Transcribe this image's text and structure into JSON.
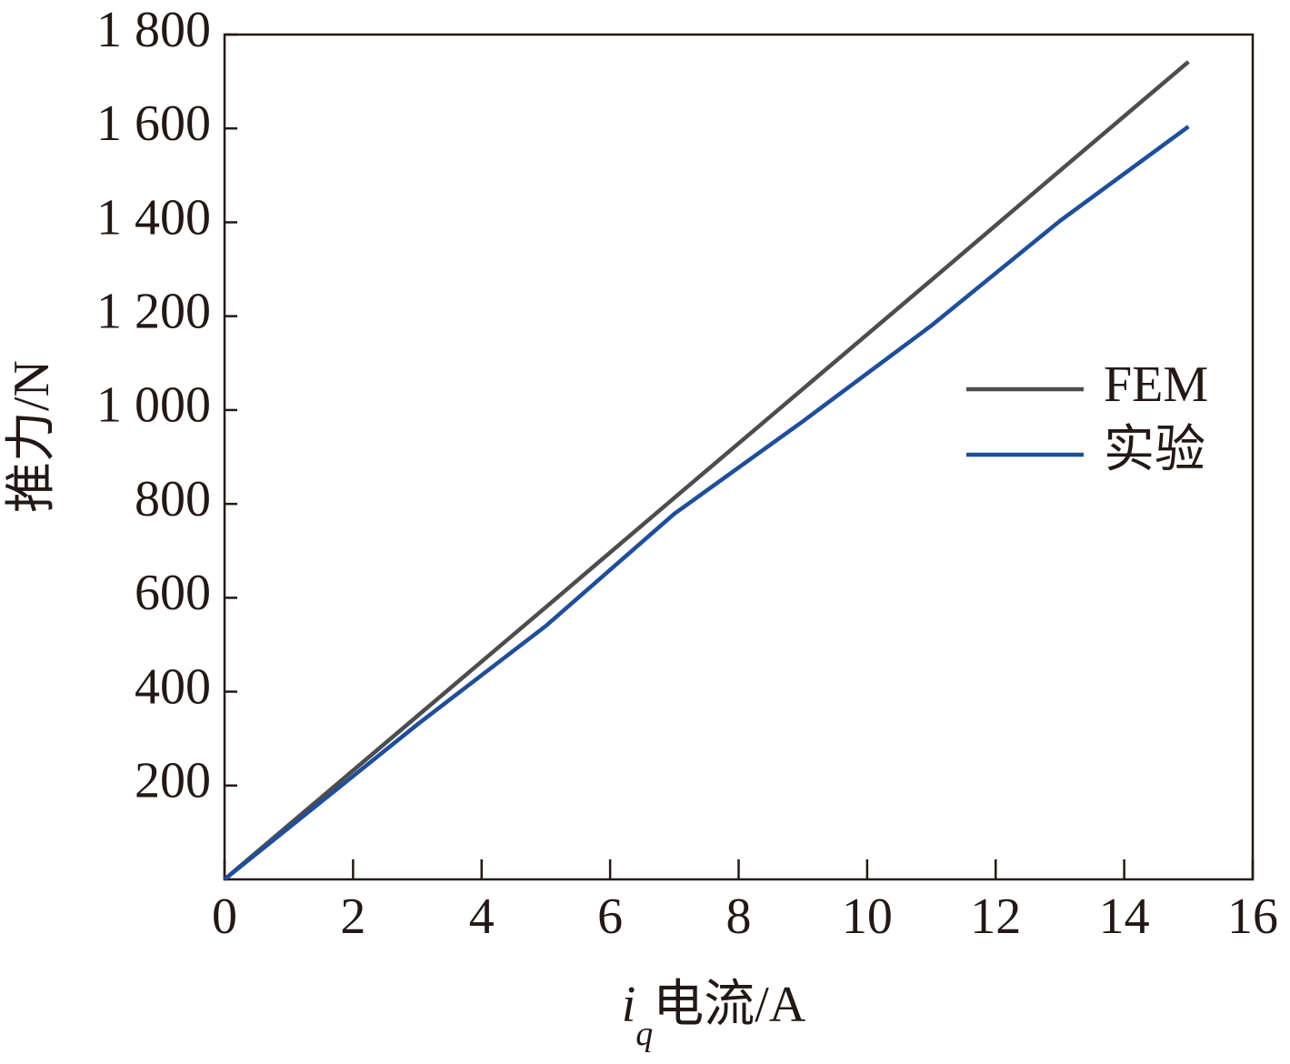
{
  "chart_data": {
    "type": "line",
    "x_label": {
      "symbol": "i",
      "subscript": "q",
      "text": "电流/A"
    },
    "y_label": "推力/N",
    "x": [
      0,
      1,
      3,
      5,
      7,
      9,
      11,
      13,
      15
    ],
    "series": [
      {
        "name": "FEM",
        "color": "#4d4d4d",
        "values": [
          0,
          116,
          348,
          580,
          813,
          1045,
          1277,
          1510,
          1742
        ]
      },
      {
        "name": "实验",
        "color": "#1f4e9a",
        "values": [
          0,
          110,
          330,
          540,
          779,
          976,
          1180,
          1403,
          1604
        ]
      }
    ],
    "xlim": [
      0,
      16
    ],
    "xticks": [
      0,
      2,
      4,
      6,
      8,
      10,
      12,
      14,
      16
    ],
    "ylim": [
      0,
      1800
    ],
    "yticks": [
      200,
      400,
      600,
      800,
      {
        "value": 1000,
        "label": "1 000"
      },
      {
        "value": 1200,
        "label": "1 200"
      },
      {
        "value": 1400,
        "label": "1 400"
      },
      {
        "value": 1600,
        "label": "1 600"
      },
      {
        "value": 1800,
        "label": "1 800"
      }
    ],
    "legend": "right"
  }
}
